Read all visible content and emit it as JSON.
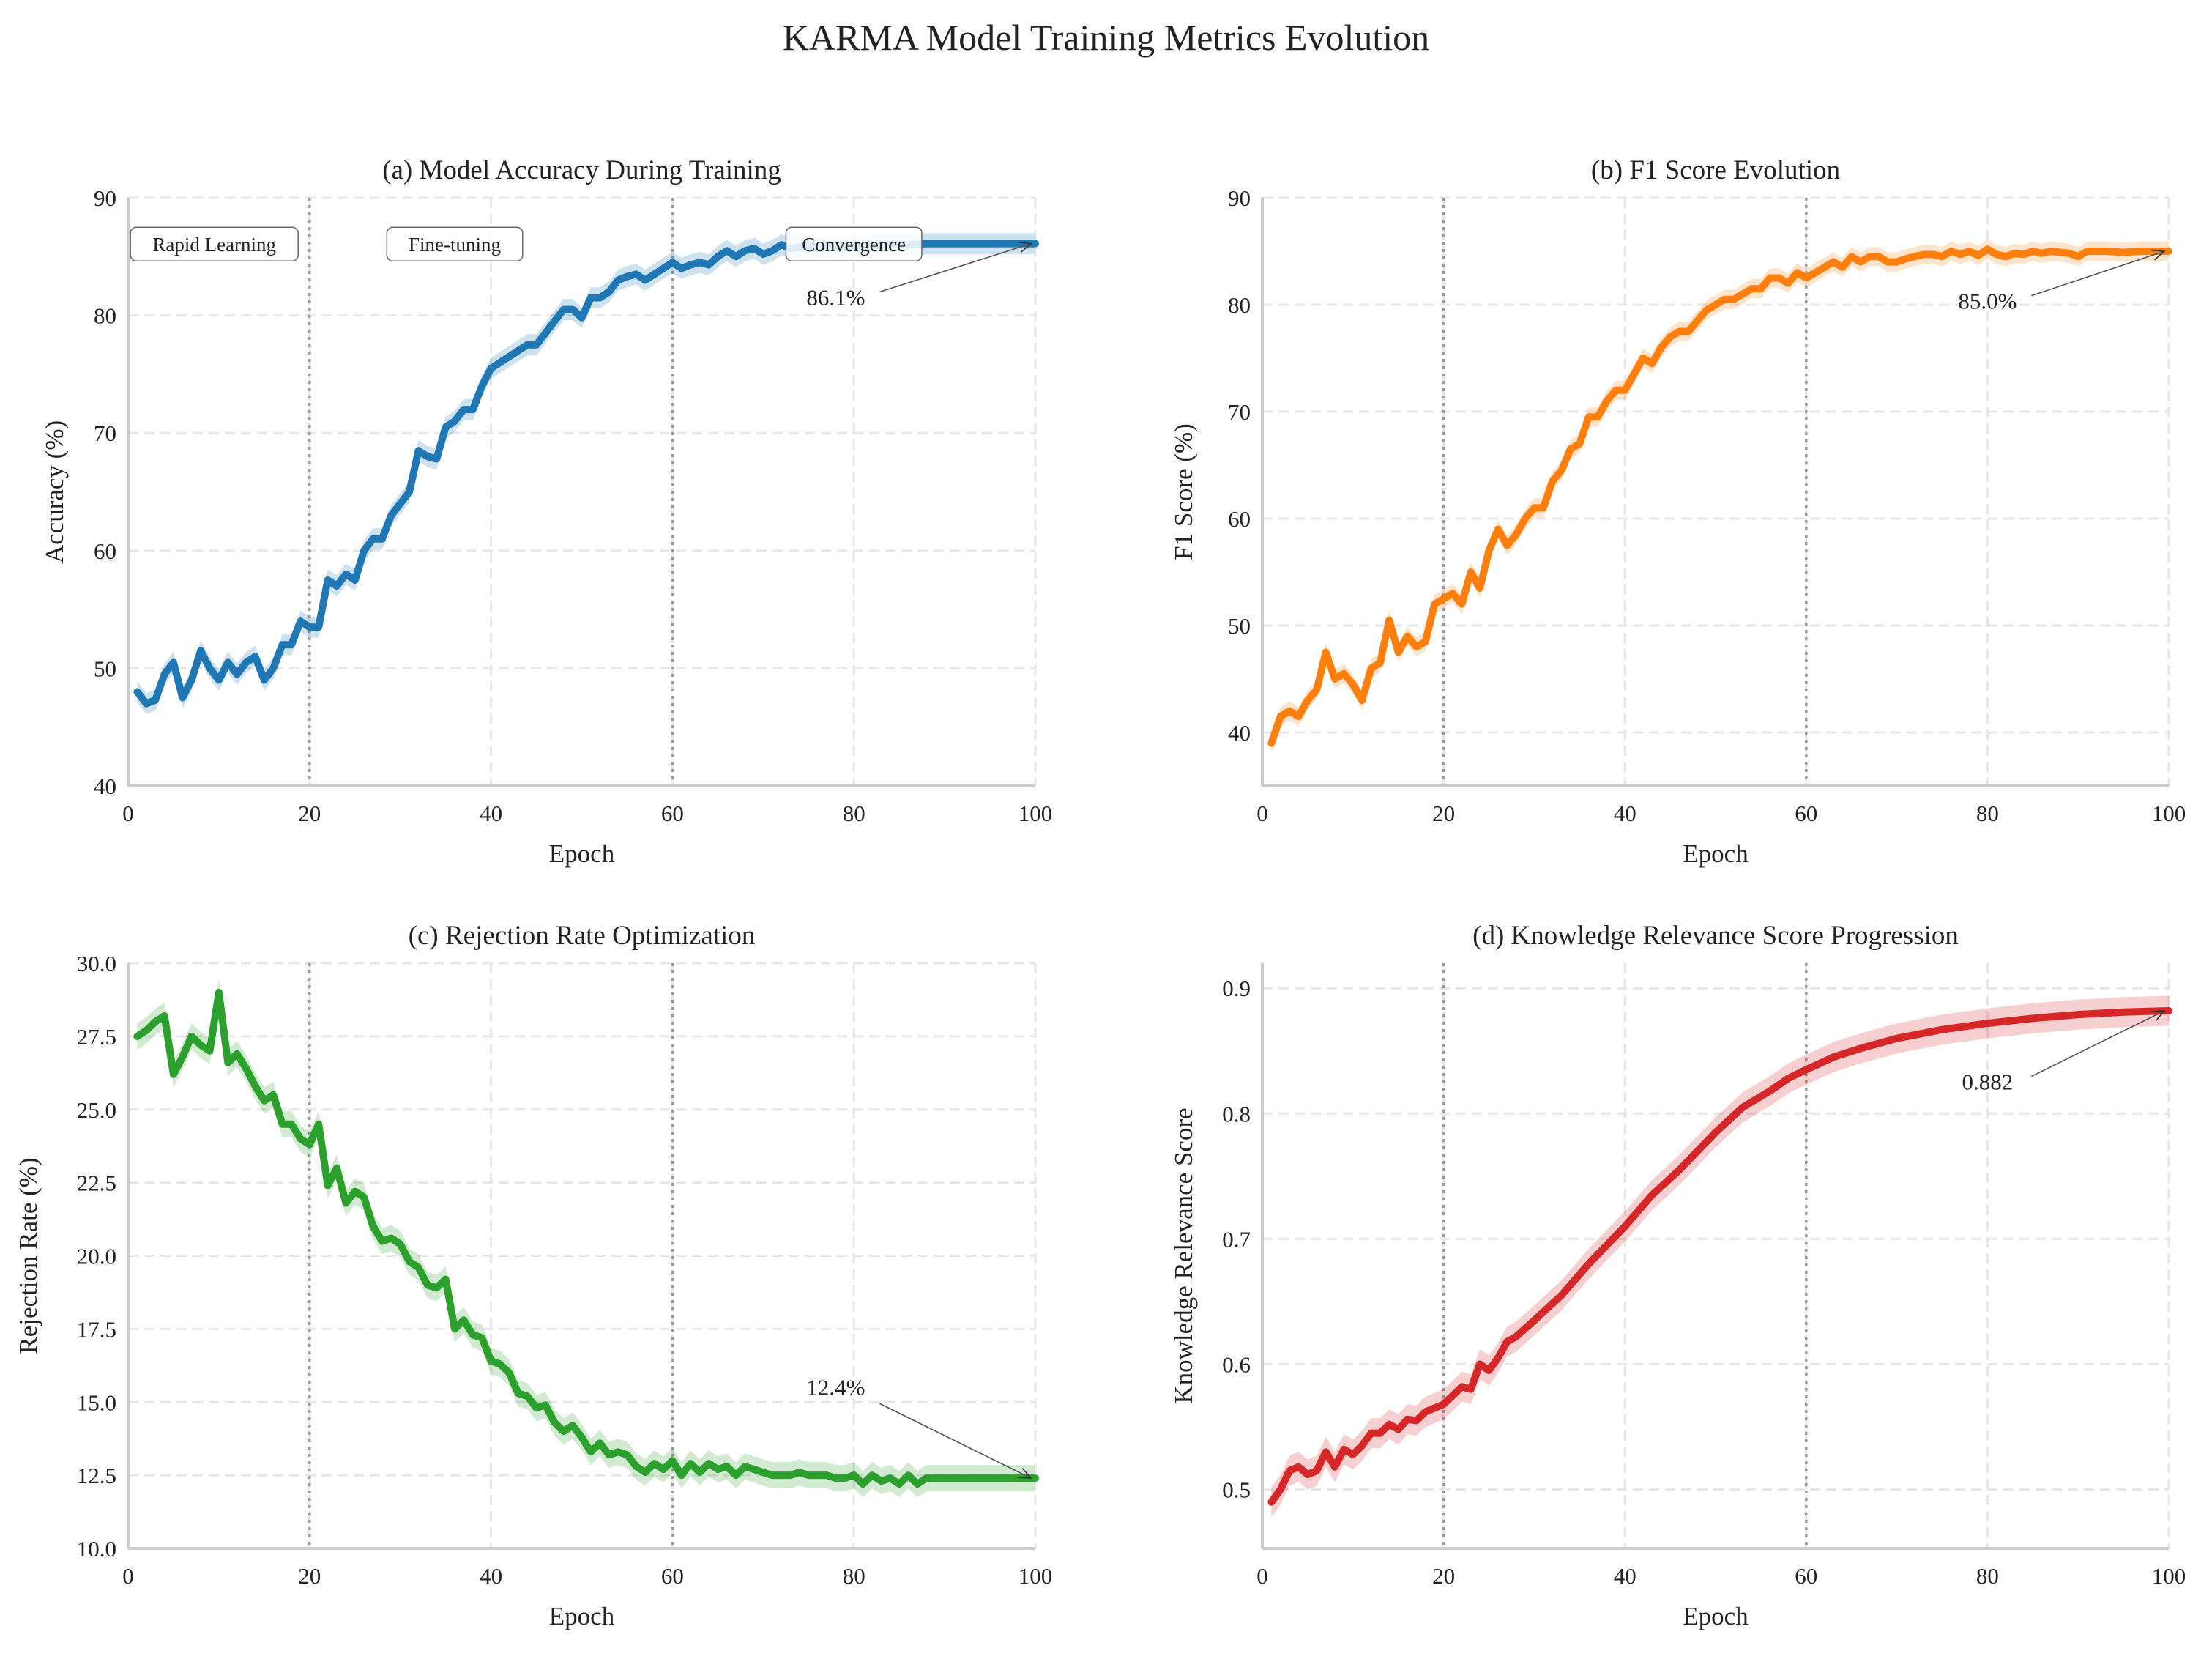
{
  "title": "KARMA Model Training Metrics Evolution",
  "chart_data": [
    {
      "type": "line",
      "title": "(a) Model Accuracy During Training",
      "xlabel": "Epoch",
      "ylabel": "Accuracy (%)",
      "xlim": [
        0,
        100
      ],
      "ylim": [
        40,
        90
      ],
      "xticks": [
        0,
        20,
        40,
        60,
        80,
        100
      ],
      "yticks": [
        40,
        50,
        60,
        70,
        80,
        90
      ],
      "grid": true,
      "color": "#1f77b4",
      "band_halfwidth": 0.9,
      "phase_lines": [
        20,
        60
      ],
      "phase_labels": [
        {
          "text": "Rapid Learning",
          "x": 9.5,
          "y": 86
        },
        {
          "text": "Fine-tuning",
          "x": 36,
          "y": 86
        },
        {
          "text": "Convergence",
          "x": 80,
          "y": 86
        }
      ],
      "annotation": {
        "text": "86.1%",
        "x": 78,
        "y": 81.5,
        "target_x": 100,
        "target_y": 86.1
      },
      "x": [
        1,
        2,
        3,
        4,
        5,
        6,
        7,
        8,
        9,
        10,
        11,
        12,
        13,
        14,
        15,
        16,
        17,
        18,
        19,
        20,
        21,
        22,
        23,
        24,
        25,
        26,
        27,
        28,
        29,
        30,
        31,
        32,
        33,
        34,
        35,
        36,
        37,
        38,
        39,
        40,
        41,
        42,
        43,
        44,
        45,
        46,
        47,
        48,
        49,
        50,
        51,
        52,
        53,
        54,
        55,
        56,
        57,
        58,
        59,
        60,
        61,
        62,
        63,
        64,
        65,
        66,
        67,
        68,
        69,
        70,
        71,
        72,
        73,
        74,
        75,
        76,
        78,
        80,
        82,
        84,
        86,
        88,
        90,
        92,
        94,
        96,
        98,
        100
      ],
      "values": [
        48,
        47,
        47.3,
        49.5,
        50.5,
        47.5,
        49,
        51.5,
        50,
        49,
        50.5,
        49.5,
        50.5,
        51,
        49,
        50,
        52,
        52,
        54,
        53.5,
        53.5,
        57.5,
        57,
        58,
        57.5,
        60,
        61,
        61,
        63,
        64,
        65,
        68.5,
        68,
        67.8,
        70.5,
        71,
        72,
        72,
        74,
        75.5,
        76,
        76.5,
        77,
        77.5,
        77.5,
        78.5,
        79.5,
        80.5,
        80.5,
        79.8,
        81.5,
        81.5,
        82,
        83,
        83.3,
        83.5,
        83,
        83.5,
        84,
        84.5,
        84,
        84.3,
        84.5,
        84.3,
        85,
        85.5,
        85,
        85.5,
        85.7,
        85.2,
        85.5,
        86,
        85.7,
        85.8,
        86,
        85.7,
        85.9,
        85.8,
        85.9,
        86,
        86,
        86.1,
        86.1,
        86.1,
        86.1,
        86.1,
        86.1,
        86.1
      ]
    },
    {
      "type": "line",
      "title": "(b) F1 Score Evolution",
      "xlabel": "Epoch",
      "ylabel": "F1 Score (%)",
      "xlim": [
        0,
        100
      ],
      "ylim": [
        35,
        90
      ],
      "xticks": [
        0,
        20,
        40,
        60,
        80,
        100
      ],
      "yticks": [
        40,
        50,
        60,
        70,
        80,
        90
      ],
      "grid": true,
      "color": "#ff7f0e",
      "band_halfwidth": 0.9,
      "phase_lines": [
        20,
        60
      ],
      "annotation": {
        "text": "85.0%",
        "x": 80,
        "y": 80.3,
        "target_x": 100,
        "target_y": 85.0
      },
      "x": [
        1,
        2,
        3,
        4,
        5,
        6,
        7,
        8,
        9,
        10,
        11,
        12,
        13,
        14,
        15,
        16,
        17,
        18,
        19,
        20,
        21,
        22,
        23,
        24,
        25,
        26,
        27,
        28,
        29,
        30,
        31,
        32,
        33,
        34,
        35,
        36,
        37,
        38,
        39,
        40,
        41,
        42,
        43,
        44,
        45,
        46,
        47,
        48,
        49,
        50,
        51,
        52,
        53,
        54,
        55,
        56,
        57,
        58,
        59,
        60,
        61,
        62,
        63,
        64,
        65,
        66,
        67,
        68,
        69,
        70,
        71,
        72,
        73,
        74,
        75,
        76,
        77,
        78,
        79,
        80,
        81,
        82,
        83,
        84,
        85,
        86,
        87,
        88,
        89,
        90,
        91,
        93,
        95,
        97,
        100
      ],
      "values": [
        39,
        41.5,
        42,
        41.5,
        43,
        44,
        47.5,
        45,
        45.5,
        44.5,
        43,
        46,
        46.5,
        50.5,
        47.5,
        49,
        48,
        48.5,
        52,
        52.5,
        53,
        52,
        55,
        53.5,
        57,
        59,
        57.5,
        58.5,
        60,
        61,
        61,
        63.5,
        64.5,
        66.5,
        67,
        69.5,
        69.5,
        71,
        72,
        72,
        73.5,
        75,
        74.5,
        76,
        77,
        77.5,
        77.5,
        78.5,
        79.5,
        80,
        80.5,
        80.5,
        81,
        81.5,
        81.5,
        82.5,
        82.5,
        82,
        83,
        82.5,
        83,
        83.5,
        84,
        83.5,
        84.5,
        84,
        84.5,
        84.5,
        84,
        84,
        84.3,
        84.5,
        84.7,
        84.7,
        84.5,
        85,
        84.7,
        85,
        84.6,
        85.2,
        84.7,
        84.5,
        84.8,
        84.7,
        85,
        84.8,
        85,
        84.9,
        84.8,
        84.5,
        85,
        85,
        84.9,
        85,
        85
      ]
    },
    {
      "type": "line",
      "title": "(c) Rejection Rate Optimization",
      "xlabel": "Epoch",
      "ylabel": "Rejection Rate (%)",
      "xlim": [
        0,
        100
      ],
      "ylim": [
        10,
        30
      ],
      "xticks": [
        0,
        20,
        40,
        60,
        80,
        100
      ],
      "yticks": [
        10.0,
        12.5,
        15.0,
        17.5,
        20.0,
        22.5,
        25.0,
        27.5,
        30.0
      ],
      "grid": true,
      "color": "#2ca02c",
      "band_halfwidth": 0.45,
      "phase_lines": [
        20,
        60
      ],
      "annotation": {
        "text": "12.4%",
        "x": 78,
        "y": 15.5,
        "target_x": 100,
        "target_y": 12.4
      },
      "x": [
        1,
        2,
        3,
        4,
        5,
        6,
        7,
        8,
        9,
        10,
        11,
        12,
        13,
        14,
        15,
        16,
        17,
        18,
        19,
        20,
        21,
        22,
        23,
        24,
        25,
        26,
        27,
        28,
        29,
        30,
        31,
        32,
        33,
        34,
        35,
        36,
        37,
        38,
        39,
        40,
        41,
        42,
        43,
        44,
        45,
        46,
        47,
        48,
        49,
        50,
        51,
        52,
        53,
        54,
        55,
        56,
        57,
        58,
        59,
        60,
        61,
        62,
        63,
        64,
        65,
        66,
        67,
        68,
        69,
        70,
        71,
        72,
        73,
        74,
        75,
        76,
        77,
        78,
        79,
        80,
        81,
        82,
        83,
        84,
        85,
        86,
        87,
        88,
        90,
        92,
        94,
        96,
        98,
        100
      ],
      "values": [
        27.5,
        27.7,
        28,
        28.2,
        26.2,
        26.8,
        27.5,
        27.2,
        27,
        29,
        26.6,
        26.9,
        26.4,
        25.8,
        25.3,
        25.5,
        24.5,
        24.5,
        24,
        23.8,
        24.5,
        22.4,
        23,
        21.8,
        22.2,
        22,
        21,
        20.5,
        20.6,
        20.4,
        19.8,
        19.6,
        19,
        18.9,
        19.2,
        17.5,
        17.8,
        17.3,
        17.2,
        16.4,
        16.3,
        16,
        15.3,
        15.2,
        14.8,
        14.9,
        14.3,
        14,
        14.2,
        13.8,
        13.3,
        13.6,
        13.2,
        13.3,
        13.2,
        12.8,
        12.6,
        12.9,
        12.7,
        13,
        12.5,
        12.9,
        12.6,
        12.9,
        12.7,
        12.8,
        12.5,
        12.8,
        12.7,
        12.6,
        12.5,
        12.5,
        12.5,
        12.6,
        12.5,
        12.5,
        12.5,
        12.4,
        12.4,
        12.5,
        12.2,
        12.5,
        12.3,
        12.4,
        12.2,
        12.5,
        12.2,
        12.4,
        12.4,
        12.4,
        12.4,
        12.4,
        12.4,
        12.4
      ]
    },
    {
      "type": "line",
      "title": "(d) Knowledge Relevance Score Progression",
      "xlabel": "Epoch",
      "ylabel": "Knowledge Relevance Score",
      "xlim": [
        0,
        100
      ],
      "ylim": [
        0.453,
        0.92
      ],
      "xticks": [
        0,
        20,
        40,
        60,
        80,
        100
      ],
      "yticks": [
        0.5,
        0.6,
        0.7,
        0.8,
        0.9
      ],
      "grid": true,
      "color": "#d62728",
      "band_halfwidth": 0.012,
      "phase_lines": [
        20,
        60
      ],
      "annotation": {
        "text": "0.882",
        "x": 80,
        "y": 0.825,
        "target_x": 100,
        "target_y": 0.882
      },
      "x": [
        1,
        2,
        3,
        4,
        5,
        6,
        7,
        8,
        9,
        10,
        11,
        12,
        13,
        14,
        15,
        16,
        17,
        18,
        19,
        20,
        21,
        22,
        23,
        24,
        25,
        26,
        27,
        28,
        30,
        33,
        36,
        38,
        40,
        43,
        46,
        48,
        50,
        53,
        56,
        58,
        60,
        63,
        66,
        70,
        75,
        80,
        85,
        90,
        95,
        100
      ],
      "values": [
        0.49,
        0.5,
        0.515,
        0.518,
        0.512,
        0.515,
        0.53,
        0.518,
        0.532,
        0.528,
        0.535,
        0.545,
        0.545,
        0.552,
        0.548,
        0.556,
        0.555,
        0.562,
        0.565,
        0.568,
        0.575,
        0.582,
        0.58,
        0.6,
        0.595,
        0.605,
        0.618,
        0.622,
        0.635,
        0.655,
        0.68,
        0.695,
        0.71,
        0.735,
        0.755,
        0.77,
        0.785,
        0.805,
        0.818,
        0.828,
        0.835,
        0.845,
        0.852,
        0.86,
        0.867,
        0.872,
        0.876,
        0.879,
        0.881,
        0.882
      ]
    }
  ]
}
